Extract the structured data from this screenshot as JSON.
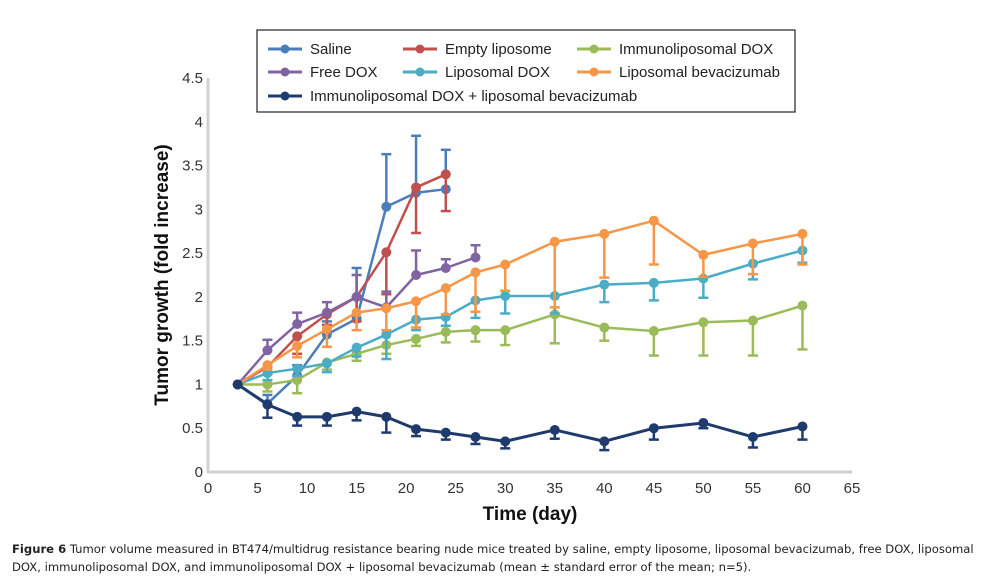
{
  "chart_data": {
    "type": "line",
    "title": "",
    "xlabel": "Time (day)",
    "ylabel": "Tumor growth (fold increase)",
    "xlim": [
      0,
      65
    ],
    "ylim": [
      0,
      4.5
    ],
    "xticks": [
      0,
      5,
      10,
      15,
      20,
      25,
      30,
      35,
      40,
      45,
      50,
      55,
      60,
      65
    ],
    "yticks": [
      0,
      0.5,
      1,
      1.5,
      2,
      2.5,
      3,
      3.5,
      4,
      4.5
    ],
    "ytick_labels": [
      "0",
      "0.5",
      "1",
      "1.5",
      "2",
      "2.5",
      "3",
      "3.5",
      "4",
      "4.5"
    ],
    "grid": false,
    "legend_position": "top-center",
    "series": [
      {
        "name": "Saline",
        "color": "#4a7ebb",
        "x": [
          3,
          6,
          9,
          12,
          15,
          18,
          21,
          24
        ],
        "y": [
          1.0,
          0.78,
          1.1,
          1.57,
          1.75,
          3.03,
          3.19,
          3.23
        ],
        "err": [
          0,
          0.1,
          0.12,
          0.15,
          0.58,
          0.6,
          0.65,
          0.45
        ]
      },
      {
        "name": "Empty liposome",
        "color": "#c0504d",
        "x": [
          3,
          6,
          9,
          12,
          15,
          18,
          21,
          24
        ],
        "y": [
          1.0,
          1.2,
          1.55,
          1.8,
          2.0,
          2.51,
          3.25,
          3.4
        ],
        "err": [
          0,
          0.08,
          0.2,
          0.12,
          0.28,
          0.48,
          0.52,
          0.42
        ]
      },
      {
        "name": "Immunoliposomal DOX",
        "color": "#9bbb59",
        "x": [
          3,
          6,
          9,
          12,
          15,
          18,
          21,
          24,
          27,
          30,
          35,
          40,
          45,
          50,
          55,
          60
        ],
        "y": [
          1.0,
          1.0,
          1.05,
          1.25,
          1.35,
          1.45,
          1.52,
          1.6,
          1.62,
          1.62,
          1.8,
          1.65,
          1.61,
          1.71,
          1.73,
          1.9
        ],
        "err": [
          0,
          0.08,
          0.15,
          0.08,
          0.08,
          0.1,
          0.08,
          0.12,
          0.13,
          0.17,
          0.33,
          0.15,
          0.28,
          0.38,
          0.4,
          0.5
        ]
      },
      {
        "name": "Free DOX",
        "color": "#8064a2",
        "x": [
          3,
          6,
          9,
          12,
          15,
          18,
          21,
          24,
          27
        ],
        "y": [
          1.0,
          1.39,
          1.69,
          1.82,
          2.0,
          1.88,
          2.25,
          2.33,
          2.45
        ],
        "err": [
          0,
          0.12,
          0.13,
          0.12,
          0.25,
          0.18,
          0.28,
          0.1,
          0.14
        ]
      },
      {
        "name": "Liposomal DOX",
        "color": "#4bacc6",
        "x": [
          3,
          6,
          9,
          12,
          15,
          18,
          21,
          24,
          27,
          30,
          35,
          40,
          45,
          50,
          55,
          60
        ],
        "y": [
          1.0,
          1.13,
          1.18,
          1.24,
          1.42,
          1.57,
          1.74,
          1.77,
          1.96,
          2.01,
          2.01,
          2.14,
          2.16,
          2.21,
          2.38,
          2.53
        ],
        "err": [
          0,
          0.08,
          0.08,
          0.1,
          0.1,
          0.28,
          0.12,
          0.1,
          0.2,
          0.2,
          0.2,
          0.2,
          0.2,
          0.22,
          0.18,
          0.14
        ]
      },
      {
        "name": "Liposomal bevacizumab",
        "color": "#f79646",
        "x": [
          3,
          6,
          9,
          12,
          15,
          18,
          21,
          24,
          27,
          30,
          35,
          40,
          45,
          50,
          55,
          60
        ],
        "y": [
          1.0,
          1.22,
          1.44,
          1.63,
          1.82,
          1.87,
          1.95,
          2.1,
          2.28,
          2.37,
          2.63,
          2.72,
          2.87,
          2.48,
          2.61,
          2.72
        ],
        "err": [
          0,
          0.05,
          0.13,
          0.2,
          0.2,
          0.25,
          0.3,
          0.3,
          0.45,
          0.3,
          0.75,
          0.5,
          0.5,
          0.25,
          0.35,
          0.35
        ]
      },
      {
        "name": "Immunoliposomal DOX + liposomal bevacizumab",
        "color": "#1f3b6e",
        "x": [
          3,
          6,
          9,
          12,
          15,
          18,
          21,
          24,
          27,
          30,
          35,
          40,
          45,
          50,
          55,
          60
        ],
        "y": [
          1.0,
          0.77,
          0.63,
          0.63,
          0.69,
          0.63,
          0.49,
          0.45,
          0.4,
          0.35,
          0.48,
          0.35,
          0.5,
          0.56,
          0.4,
          0.52
        ],
        "err": [
          0,
          0.15,
          0.1,
          0.1,
          0.1,
          0.18,
          0.08,
          0.08,
          0.08,
          0.08,
          0.1,
          0.1,
          0.13,
          0.06,
          0.12,
          0.15
        ]
      }
    ]
  },
  "caption": {
    "label": "Figure 6",
    "text": " Tumor volume measured in BT474/multidrug resistance bearing nude mice treated by saline, empty liposome, liposomal bevacizumab, free DOX, liposomal DOX, immunoliposomal DOX, and immunoliposomal DOX + liposomal bevacizumab (mean ± standard error of the mean; n=5)."
  }
}
